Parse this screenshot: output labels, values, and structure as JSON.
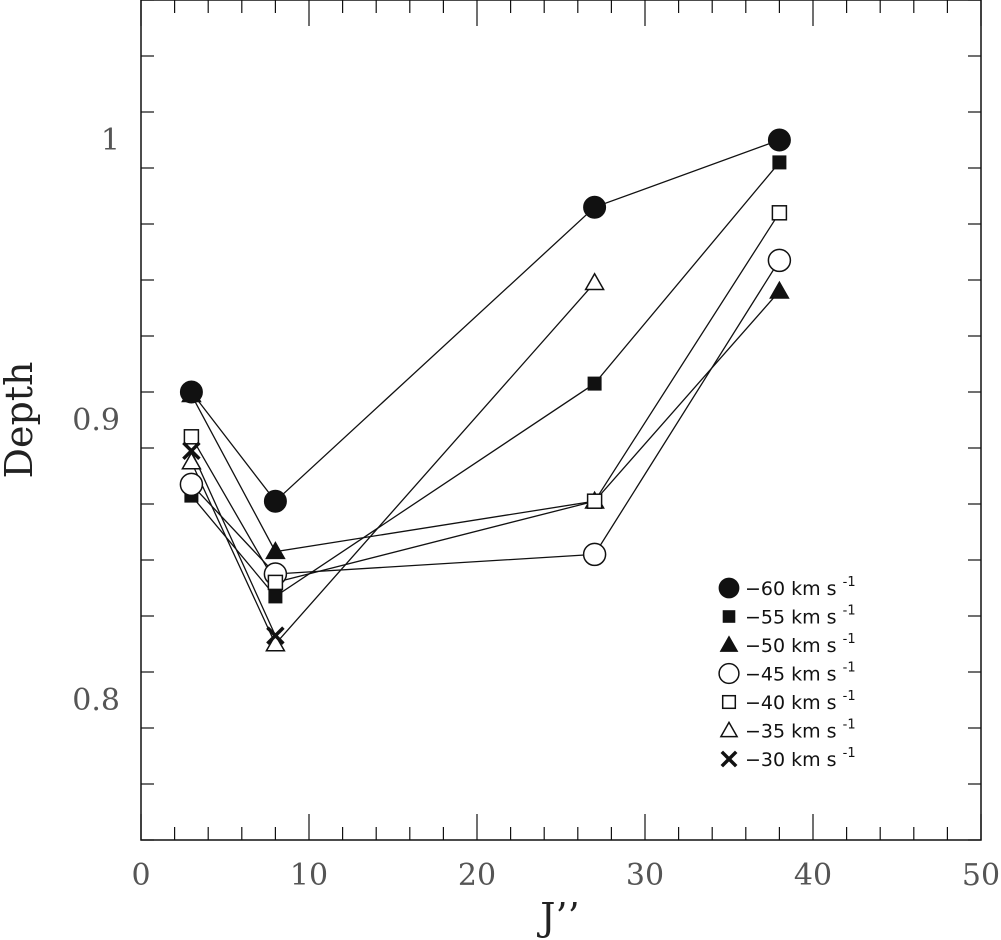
{
  "chart_data": {
    "type": "line",
    "xlabel": "J’’",
    "ylabel": "Depth",
    "xlim": [
      0,
      50
    ],
    "ylim": [
      0.75,
      1.05
    ],
    "x_ticks": [
      "0",
      "10",
      "20",
      "30",
      "40",
      "50"
    ],
    "y_ticks": [
      "0.8",
      "0.9",
      "1"
    ],
    "x": [
      3,
      8,
      27,
      38
    ],
    "grid": false,
    "legend_position": "right",
    "unit": "km s",
    "unit_exponent": "-1",
    "series": [
      {
        "name": "−60",
        "marker": "filled-circle",
        "values": [
          0.91,
          0.871,
          0.976,
          1.0
        ]
      },
      {
        "name": "−55",
        "marker": "filled-square",
        "values": [
          0.873,
          0.837,
          0.913,
          0.992
        ]
      },
      {
        "name": "−50",
        "marker": "filled-triangle",
        "values": [
          0.909,
          0.853,
          0.871,
          0.946
        ]
      },
      {
        "name": "−45",
        "marker": "open-circle",
        "values": [
          0.877,
          0.845,
          0.852,
          0.957
        ]
      },
      {
        "name": "−40",
        "marker": "open-square",
        "values": [
          0.894,
          0.842,
          0.871,
          0.974
        ]
      },
      {
        "name": "−35",
        "marker": "open-triangle",
        "values": [
          0.885,
          0.82,
          0.949,
          null
        ]
      },
      {
        "name": "−30",
        "marker": "cross",
        "values": [
          0.889,
          0.823,
          null,
          null
        ]
      }
    ]
  }
}
